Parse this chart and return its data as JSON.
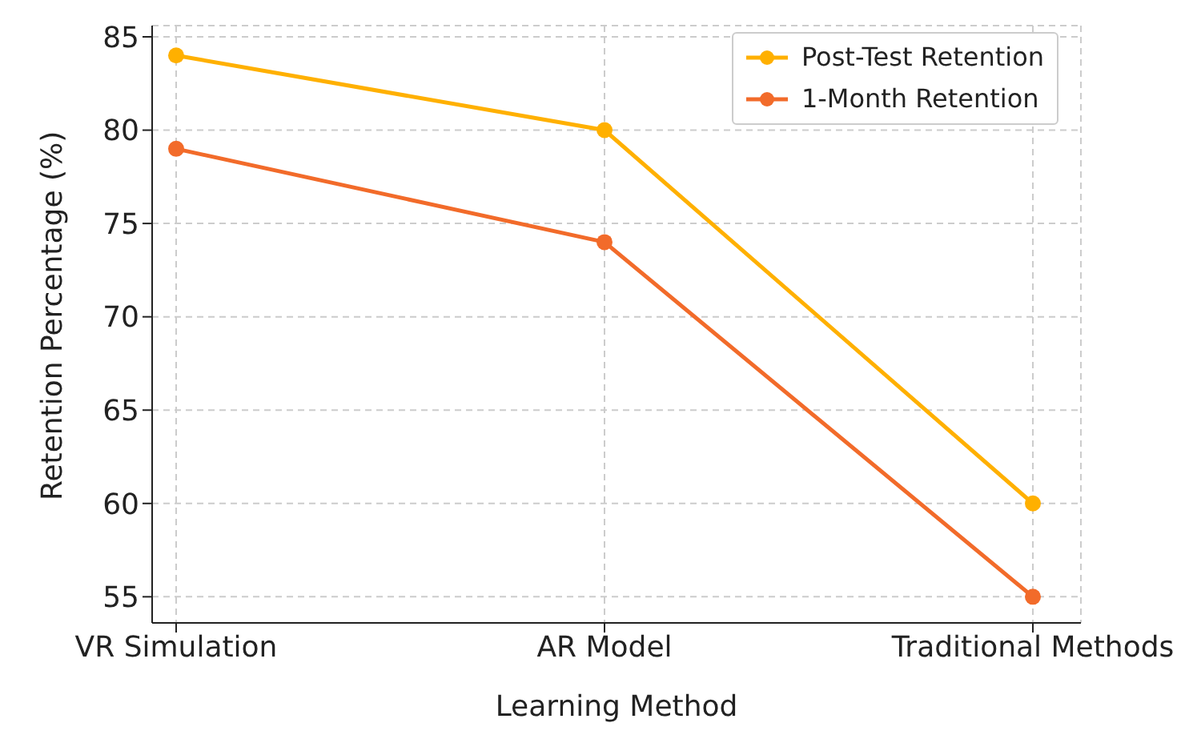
{
  "chart_data": {
    "type": "line",
    "xlabel": "Learning Method",
    "ylabel": "Retention Percentage (%)",
    "categories": [
      "VR Simulation",
      "AR Model",
      "Traditional Methods"
    ],
    "series": [
      {
        "name": "Post-Test Retention",
        "color": "#ffb000",
        "values": [
          84,
          80,
          60
        ]
      },
      {
        "name": "1-Month Retention",
        "color": "#f26b2a",
        "values": [
          79,
          74,
          55
        ]
      }
    ],
    "ylim": [
      53.6,
      85.6
    ],
    "yticks": [
      55,
      60,
      65,
      70,
      75,
      80,
      85
    ],
    "grid": true,
    "legend": "top right",
    "marker": "circle",
    "line_style": "solid"
  }
}
